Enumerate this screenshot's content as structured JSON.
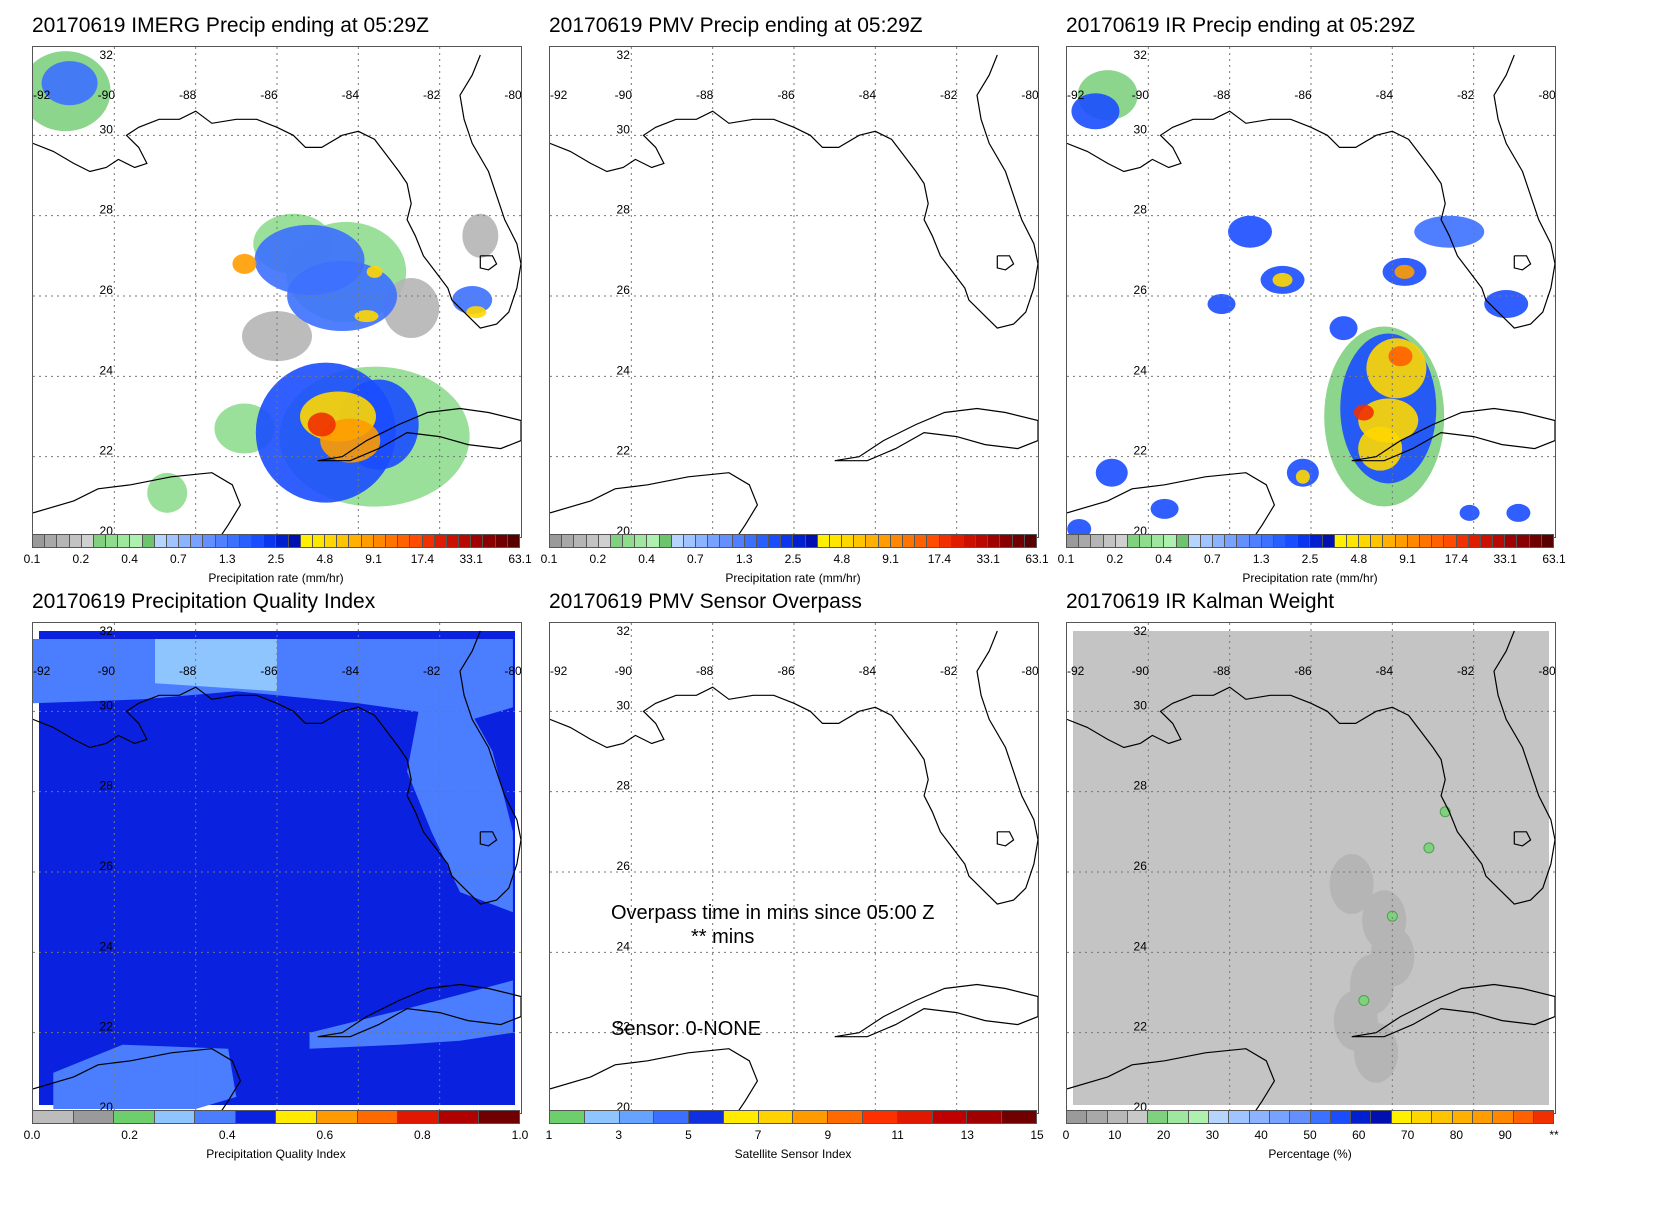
{
  "date": "20170619",
  "colors": {
    "precip_scale": [
      "#9a9a9a",
      "#a8a8a8",
      "#b5b5b5",
      "#c3c3c3",
      "#d0d0d0",
      "#7fd07f",
      "#8fdc8f",
      "#9fe69f",
      "#aef0ae",
      "#6ec36e",
      "#b5d5ff",
      "#a0c4ff",
      "#8cb3ff",
      "#78a2ff",
      "#648fff",
      "#5080ff",
      "#3c70ff",
      "#2860ff",
      "#1a4dff",
      "#0a36f0",
      "#0020d0",
      "#0010b0",
      "#fff000",
      "#ffe600",
      "#ffd700",
      "#ffc400",
      "#ffb000",
      "#ff9c00",
      "#ff8800",
      "#ff7400",
      "#ff6000",
      "#ff4c00",
      "#f03000",
      "#e01c00",
      "#cc1000",
      "#b80800",
      "#a00000",
      "#880000",
      "#700000",
      "#580000"
    ],
    "quality_scale": [
      "#bcbcbc",
      "#9a9a9a",
      "#6ccf6c",
      "#8ec5ff",
      "#4b7dff",
      "#0a22e0",
      "#ffea00",
      "#ff9b00",
      "#ff6a00",
      "#e01800",
      "#b00000",
      "#700000"
    ],
    "sensor_scale": [
      "#6ccf6c",
      "#8ec5ff",
      "#66a3ff",
      "#3c6fff",
      "#1030e0",
      "#ffea00",
      "#ffd200",
      "#ff9b00",
      "#ff6a00",
      "#ff3000",
      "#e01800",
      "#c00000",
      "#a00000",
      "#700000"
    ],
    "percentage_scale": [
      "#9a9a9a",
      "#a8a8a8",
      "#b8b8b8",
      "#c8c8c8",
      "#7fd07f",
      "#9fe69f",
      "#aef0ae",
      "#b5d5ff",
      "#a0c4ff",
      "#8cb3ff",
      "#78a2ff",
      "#648fff",
      "#3c70ff",
      "#1a4dff",
      "#0020d0",
      "#0010b0",
      "#fff000",
      "#ffd700",
      "#ffc400",
      "#ffb000",
      "#ff9c00",
      "#ff8800",
      "#ff6000",
      "#f03000"
    ]
  },
  "grid_labels": {
    "lon": [
      "-92",
      "-90",
      "-88",
      "-86",
      "-84",
      "-82",
      "-80"
    ],
    "lat": [
      "32",
      "30",
      "28",
      "26",
      "24",
      "22",
      "20"
    ]
  },
  "panels": [
    {
      "title": "20170619 IMERG Precip ending at 05:29Z",
      "kind": "precip_imerg",
      "colorbar_label": "Precipitation rate (mm/hr)",
      "ticks": [
        "0.1",
        "0.2",
        "0.4",
        "0.7",
        "1.3",
        "2.5",
        "4.8",
        "9.1",
        "17.4",
        "33.1",
        "63.1"
      ]
    },
    {
      "title": "20170619 PMV Precip ending at 05:29Z",
      "kind": "empty",
      "colorbar_label": "Precipitation rate (mm/hr)",
      "ticks": [
        "0.1",
        "0.2",
        "0.4",
        "0.7",
        "1.3",
        "2.5",
        "4.8",
        "9.1",
        "17.4",
        "33.1",
        "63.1"
      ]
    },
    {
      "title": "20170619 IR Precip ending at 05:29Z",
      "kind": "precip_ir",
      "colorbar_label": "Precipitation rate (mm/hr)",
      "ticks": [
        "0.1",
        "0.2",
        "0.4",
        "0.7",
        "1.3",
        "2.5",
        "4.8",
        "9.1",
        "17.4",
        "33.1",
        "63.1"
      ]
    },
    {
      "title": "20170619 Precipitation Quality Index",
      "kind": "quality",
      "colorbar_label": "Precipitation Quality Index",
      "ticks": [
        "0.0",
        "0.2",
        "0.4",
        "0.6",
        "0.8",
        "1.0"
      ]
    },
    {
      "title": "20170619 PMV Sensor Overpass",
      "kind": "sensor",
      "colorbar_label": "Satellite Sensor Index",
      "ticks": [
        "1",
        "3",
        "5",
        "7",
        "9",
        "11",
        "13",
        "15"
      ],
      "overpass_line1": "Overpass time in mins since 05:00 Z",
      "overpass_line2": "** mins",
      "sensor_text": "Sensor:   0-NONE"
    },
    {
      "title": "20170619 IR Kalman Weight",
      "kind": "kalman",
      "colorbar_label": "Percentage (%)",
      "ticks": [
        "0",
        "10",
        "20",
        "30",
        "40",
        "50",
        "60",
        "70",
        "80",
        "90",
        "**"
      ]
    }
  ]
}
